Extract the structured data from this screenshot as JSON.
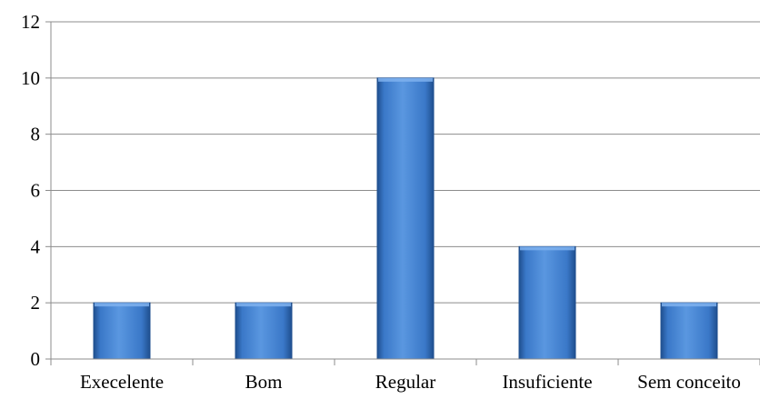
{
  "chart_data": {
    "type": "bar",
    "title": "",
    "xlabel": "",
    "ylabel": "",
    "categories": [
      "Execelente",
      "Bom",
      "Regular",
      "Insuficiente",
      "Sem conceito"
    ],
    "values": [
      2,
      2,
      10,
      4,
      2
    ],
    "ylim": [
      0,
      12
    ],
    "yticks": [
      0,
      2,
      4,
      6,
      8,
      10,
      12
    ],
    "grid": true,
    "legend": "none",
    "bar_color": "#3f7fce",
    "bar_edge_color": "#1f4f8f"
  }
}
